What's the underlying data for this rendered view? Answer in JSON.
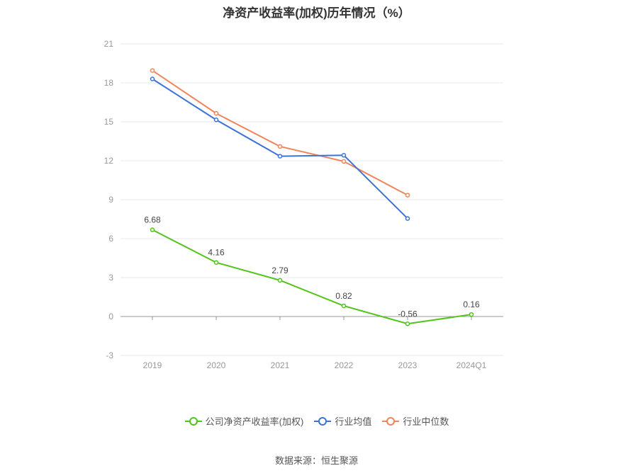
{
  "chart_data": {
    "type": "line",
    "title": "净资产收益率(加权)历年情况（%）",
    "categories": [
      "2019",
      "2020",
      "2021",
      "2022",
      "2023",
      "2024Q1"
    ],
    "ylim": [
      -3,
      21
    ],
    "yticks": [
      -3,
      0,
      3,
      6,
      9,
      12,
      15,
      18,
      21
    ],
    "grid": true,
    "legend_position": "bottom",
    "series": [
      {
        "name": "公司净资产收益率(加权)",
        "color": "#52c41a",
        "values": [
          6.68,
          4.16,
          2.79,
          0.82,
          -0.56,
          0.16
        ],
        "labels": [
          "6.68",
          "4.16",
          "2.79",
          "0.82",
          "-0.56",
          "0.16"
        ]
      },
      {
        "name": "行业均值",
        "color": "#3b73d9",
        "values": [
          18.3,
          15.15,
          12.35,
          12.42,
          7.55,
          null
        ]
      },
      {
        "name": "行业中位数",
        "color": "#f0845a",
        "values": [
          18.95,
          15.65,
          13.1,
          11.95,
          9.35,
          null
        ]
      }
    ],
    "source": "数据来源：恒生聚源"
  }
}
